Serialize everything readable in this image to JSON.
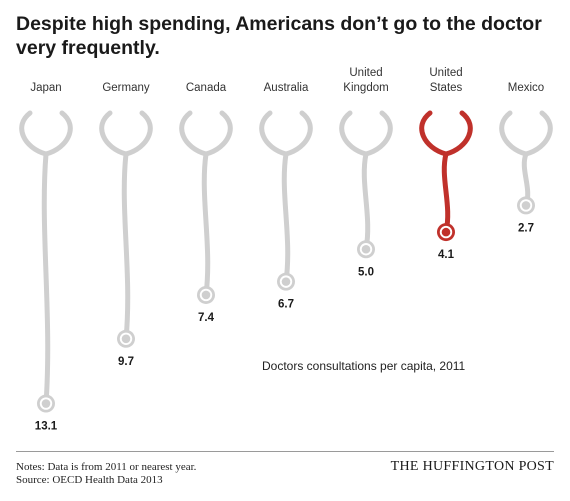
{
  "header": {
    "title": "Despite high spending, Americans don’t go to the doctor very frequently."
  },
  "chart_data": {
    "type": "bar",
    "title": "Despite high spending, Americans don’t go to the doctor very frequently.",
    "ylabel": "Doctors consultations per capita, 2011",
    "categories": [
      "Japan",
      "Germany",
      "Canada",
      "Australia",
      "United Kingdom",
      "United States",
      "Mexico"
    ],
    "category_lines": [
      [
        "Japan"
      ],
      [
        "Germany"
      ],
      [
        "Canada"
      ],
      [
        "Australia"
      ],
      [
        "United",
        "Kingdom"
      ],
      [
        "United",
        "States"
      ],
      [
        "Mexico"
      ]
    ],
    "values": [
      13.1,
      9.7,
      7.4,
      6.7,
      5.0,
      4.1,
      2.7
    ],
    "value_labels": [
      "13.1",
      "9.7",
      "7.4",
      "6.7",
      "5.0",
      "4.1",
      "2.7"
    ],
    "highlight": "United States",
    "colors": {
      "default": "#cfcfcf",
      "highlight": "#c0312b"
    }
  },
  "footer": {
    "notes": "Notes: Data is from 2011 or nearest year.",
    "source": "Source: OECD Health Data 2013",
    "brand": "THE HUFFINGTON POST"
  }
}
